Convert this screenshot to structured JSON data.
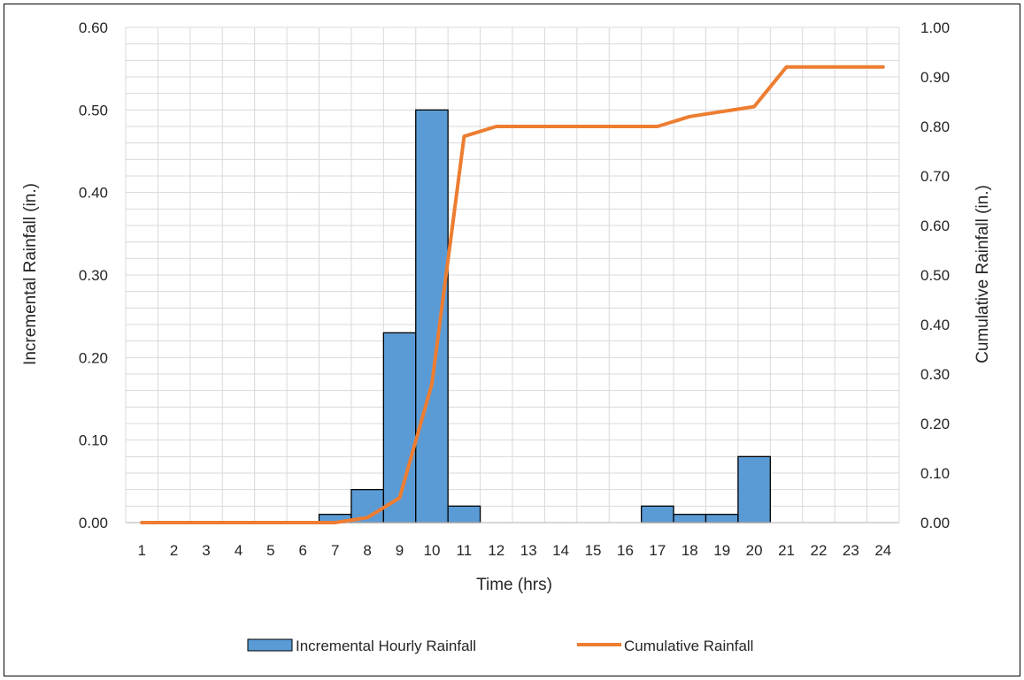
{
  "chart_data": {
    "type": "bar",
    "title": "",
    "xlabel": "Time (hrs)",
    "ylabel": "Incremental Rainfall (in.)",
    "y2label": "Cumulative Rainfall (in.)",
    "categories": [
      "1",
      "2",
      "3",
      "4",
      "5",
      "6",
      "7",
      "8",
      "9",
      "10",
      "11",
      "12",
      "13",
      "14",
      "15",
      "16",
      "17",
      "18",
      "19",
      "20",
      "21",
      "22",
      "23",
      "24"
    ],
    "ylim": [
      0,
      0.6
    ],
    "yticks": [
      "0.00",
      "0.10",
      "0.20",
      "0.30",
      "0.40",
      "0.50",
      "0.60"
    ],
    "y2lim": [
      0,
      1.0
    ],
    "y2ticks": [
      "0.00",
      "0.10",
      "0.20",
      "0.30",
      "0.40",
      "0.50",
      "0.60",
      "0.70",
      "0.80",
      "0.90",
      "1.00"
    ],
    "grid": true,
    "legend_position": "bottom",
    "series": [
      {
        "name": "Incremental Hourly Rainfall",
        "type": "bar",
        "axis": "left",
        "color": "#5B9BD5",
        "values": [
          0,
          0,
          0,
          0,
          0,
          0,
          0.01,
          0.04,
          0.23,
          0.5,
          0.02,
          0,
          0,
          0,
          0,
          0,
          0.02,
          0.01,
          0.01,
          0.08,
          0,
          0,
          0,
          0
        ]
      },
      {
        "name": "Cumulative Rainfall",
        "type": "line",
        "axis": "right",
        "color": "#ED7D31",
        "values": [
          0,
          0,
          0,
          0,
          0,
          0,
          0,
          0.01,
          0.05,
          0.28,
          0.78,
          0.8,
          0.8,
          0.8,
          0.8,
          0.8,
          0.8,
          0.82,
          0.83,
          0.84,
          0.92,
          0.92,
          0.92,
          0.92
        ]
      }
    ]
  }
}
